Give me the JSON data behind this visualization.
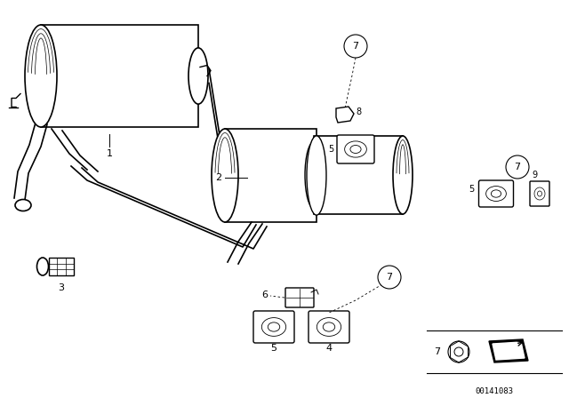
{
  "background_color": "#ffffff",
  "part_number": "00141083",
  "fig_width": 6.4,
  "fig_height": 4.48,
  "dpi": 100
}
